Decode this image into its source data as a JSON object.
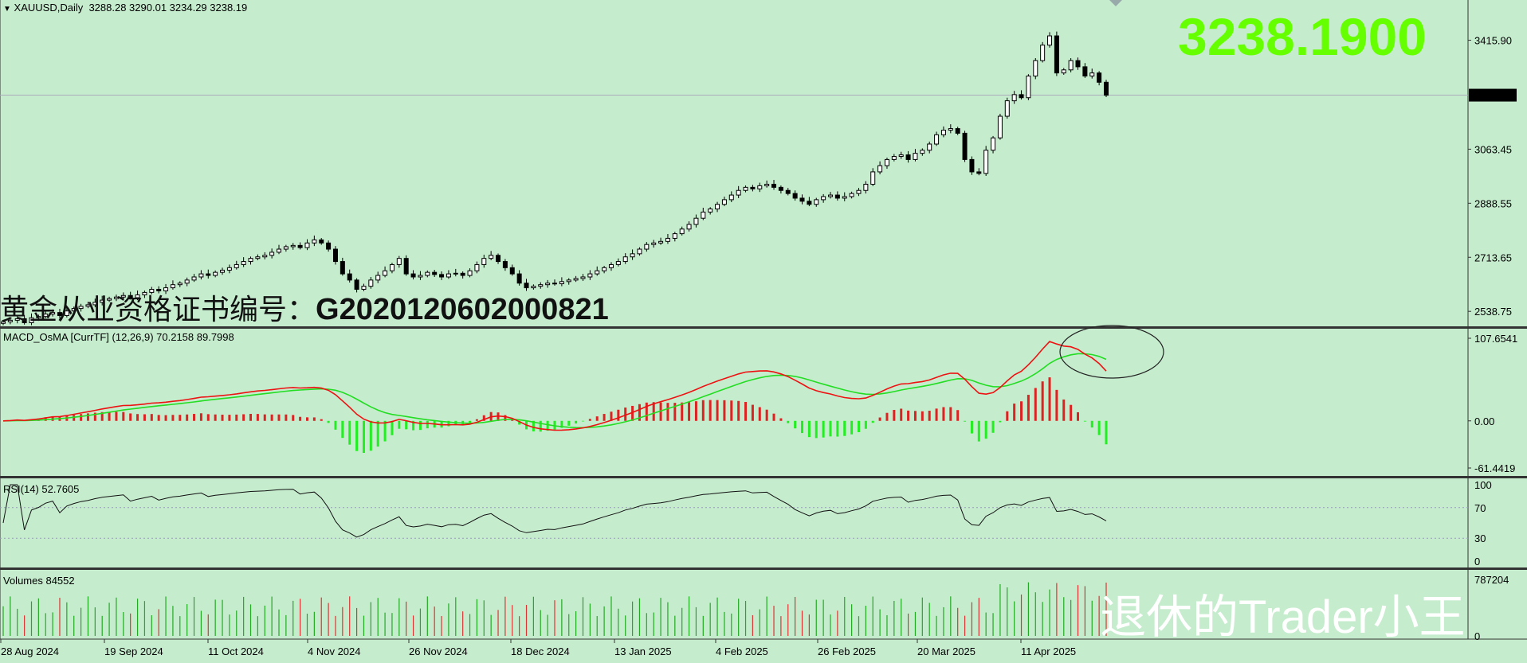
{
  "window": {
    "header_symbol": "XAUUSD,Daily",
    "ohlc_text": "3288.28 3290.01 3234.29 3238.19"
  },
  "big_price": {
    "text": "3238.1900",
    "color": "#66ff00"
  },
  "watermark_cert": {
    "label": "黄金从业资格证书编号：",
    "number": "G202012060200082​1"
  },
  "watermark_signature": "退休的Trader小王",
  "colors": {
    "background": "#c6ecce",
    "bull_candle": "#ffffff",
    "bear_candle": "#000000",
    "macd_line": "#ee1111",
    "signal_line": "#22dd22",
    "osma_positive": "#dd2222",
    "osma_negative": "#22ee22",
    "volume_up": "#22aa22",
    "volume_down": "#dd3333"
  },
  "main_pane": {
    "price_axis_labels": [
      "3415.90",
      "3063.45",
      "2888.55",
      "2713.65",
      "2538.75"
    ],
    "current_price_tag": "3238.19"
  },
  "macd_pane": {
    "title": "MACD_OsMA [CurrTF] (12,26,9) 70.2158 89.7998",
    "axis_labels": [
      "107.6541",
      "0.00",
      "-61.4419"
    ]
  },
  "rsi_pane": {
    "title": "RSI(14) 52.7605",
    "axis_labels": [
      "100",
      "70",
      "30",
      "0"
    ]
  },
  "volume_pane": {
    "title": "Volumes 84552",
    "axis_labels": [
      "787204",
      "0"
    ]
  },
  "time_axis": {
    "labels": [
      "28 Aug 2024",
      "19 Sep 2024",
      "11 Oct 2024",
      "4 Nov 2024",
      "26 Nov 2024",
      "18 Dec 2024",
      "13 Jan 2025",
      "4 Feb 2025",
      "26 Feb 2025",
      "20 Mar 2025",
      "11 Apr 2025"
    ]
  },
  "chart_data": {
    "type": "candlestick",
    "symbol": "XAUUSD",
    "timeframe": "Daily",
    "price_ylim": [
      2480,
      3510
    ],
    "last_price": 3238.19,
    "close_series_approx": [
      2505,
      2510,
      2515,
      2502,
      2518,
      2522,
      2530,
      2535,
      2525,
      2540,
      2548,
      2555,
      2560,
      2568,
      2575,
      2580,
      2585,
      2590,
      2583,
      2592,
      2600,
      2610,
      2605,
      2615,
      2625,
      2630,
      2640,
      2650,
      2660,
      2655,
      2665,
      2672,
      2680,
      2690,
      2700,
      2710,
      2715,
      2720,
      2730,
      2740,
      2748,
      2752,
      2745,
      2760,
      2770,
      2760,
      2740,
      2700,
      2660,
      2640,
      2610,
      2620,
      2640,
      2655,
      2670,
      2690,
      2710,
      2660,
      2650,
      2655,
      2665,
      2658,
      2650,
      2660,
      2662,
      2655,
      2670,
      2690,
      2710,
      2720,
      2700,
      2680,
      2660,
      2630,
      2615,
      2620,
      2625,
      2630,
      2628,
      2635,
      2640,
      2645,
      2650,
      2660,
      2670,
      2680,
      2690,
      2700,
      2715,
      2725,
      2740,
      2755,
      2760,
      2765,
      2775,
      2790,
      2805,
      2820,
      2840,
      2860,
      2870,
      2885,
      2900,
      2915,
      2930,
      2940,
      2935,
      2945,
      2950,
      2940,
      2930,
      2920,
      2905,
      2895,
      2885,
      2900,
      2910,
      2915,
      2905,
      2910,
      2920,
      2930,
      2950,
      2990,
      3010,
      3030,
      3040,
      3045,
      3030,
      3050,
      3060,
      3080,
      3110,
      3125,
      3130,
      3115,
      3030,
      2990,
      2985,
      3060,
      3100,
      3170,
      3220,
      3240,
      3230,
      3300,
      3350,
      3400,
      3430,
      3310,
      3320,
      3350,
      3330,
      3300,
      3310,
      3280,
      3238
    ],
    "macd_osma": {
      "macd": 70.2158,
      "signal": 89.7998,
      "params": [
        12,
        26,
        9
      ],
      "ylim": [
        -61.4419,
        107.6541
      ]
    },
    "rsi": {
      "period": 14,
      "value": 52.7605,
      "levels": [
        30,
        70
      ],
      "ylim": [
        0,
        100
      ]
    },
    "volume": {
      "last": 84552,
      "ylim": [
        0,
        787204
      ]
    }
  }
}
